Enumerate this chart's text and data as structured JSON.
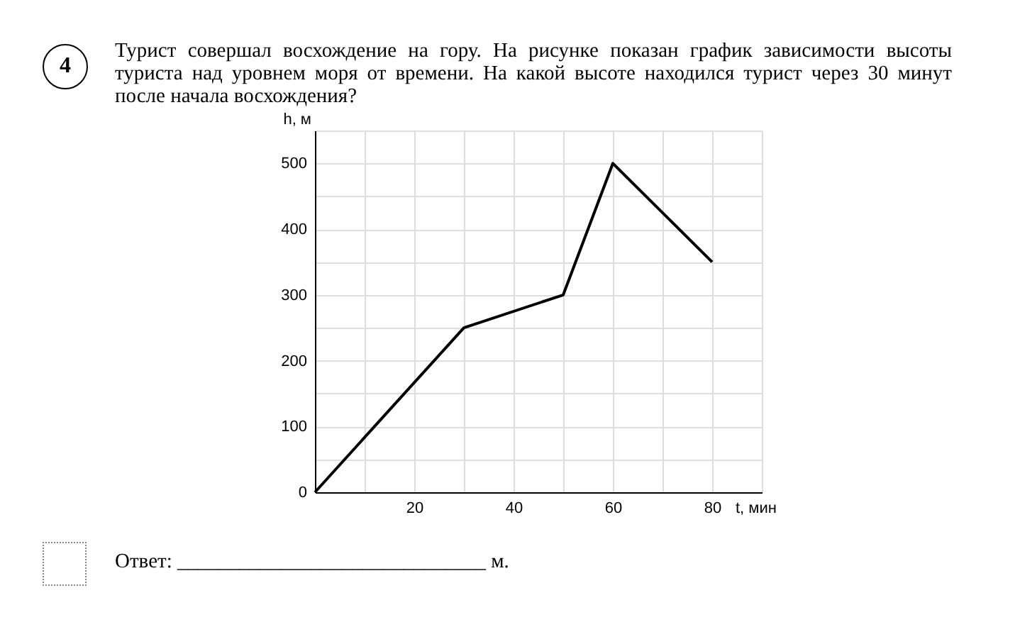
{
  "chart_data": {
    "type": "line",
    "title": "Турист совершал восхождение на гору. На рисунке показан график зависимости высоты туриста над уровнем моря от времени. На какой высоте находился турист через 30 минут после начала восхождения?",
    "xlabel": "t, мин",
    "ylabel": "h, м",
    "annotations": [
      "4",
      "Ответ: ______________________________ м."
    ],
    "x": [
      0,
      30,
      50,
      60,
      80
    ],
    "series": [
      {
        "color": "#000000",
        "values": [
          0,
          250,
          300,
          500,
          350
        ]
      }
    ],
    "xlim": [
      0,
      90
    ],
    "xticks": [
      {
        "value": 10,
        "label": null
      },
      20,
      {
        "value": 30,
        "label": null
      },
      40,
      {
        "value": 50,
        "label": null
      },
      60,
      {
        "value": 70,
        "label": null
      },
      80,
      {
        "value": 90,
        "label": null
      }
    ],
    "ylim": [
      0,
      550
    ],
    "yticks": [
      0,
      {
        "value": 50,
        "label": null
      },
      100,
      {
        "value": 150,
        "label": null
      },
      200,
      {
        "value": 250,
        "label": null
      },
      300,
      {
        "value": 350,
        "label": null
      },
      400,
      {
        "value": 450,
        "label": null
      },
      500,
      {
        "value": 550,
        "label": null
      }
    ],
    "grid": true
  }
}
